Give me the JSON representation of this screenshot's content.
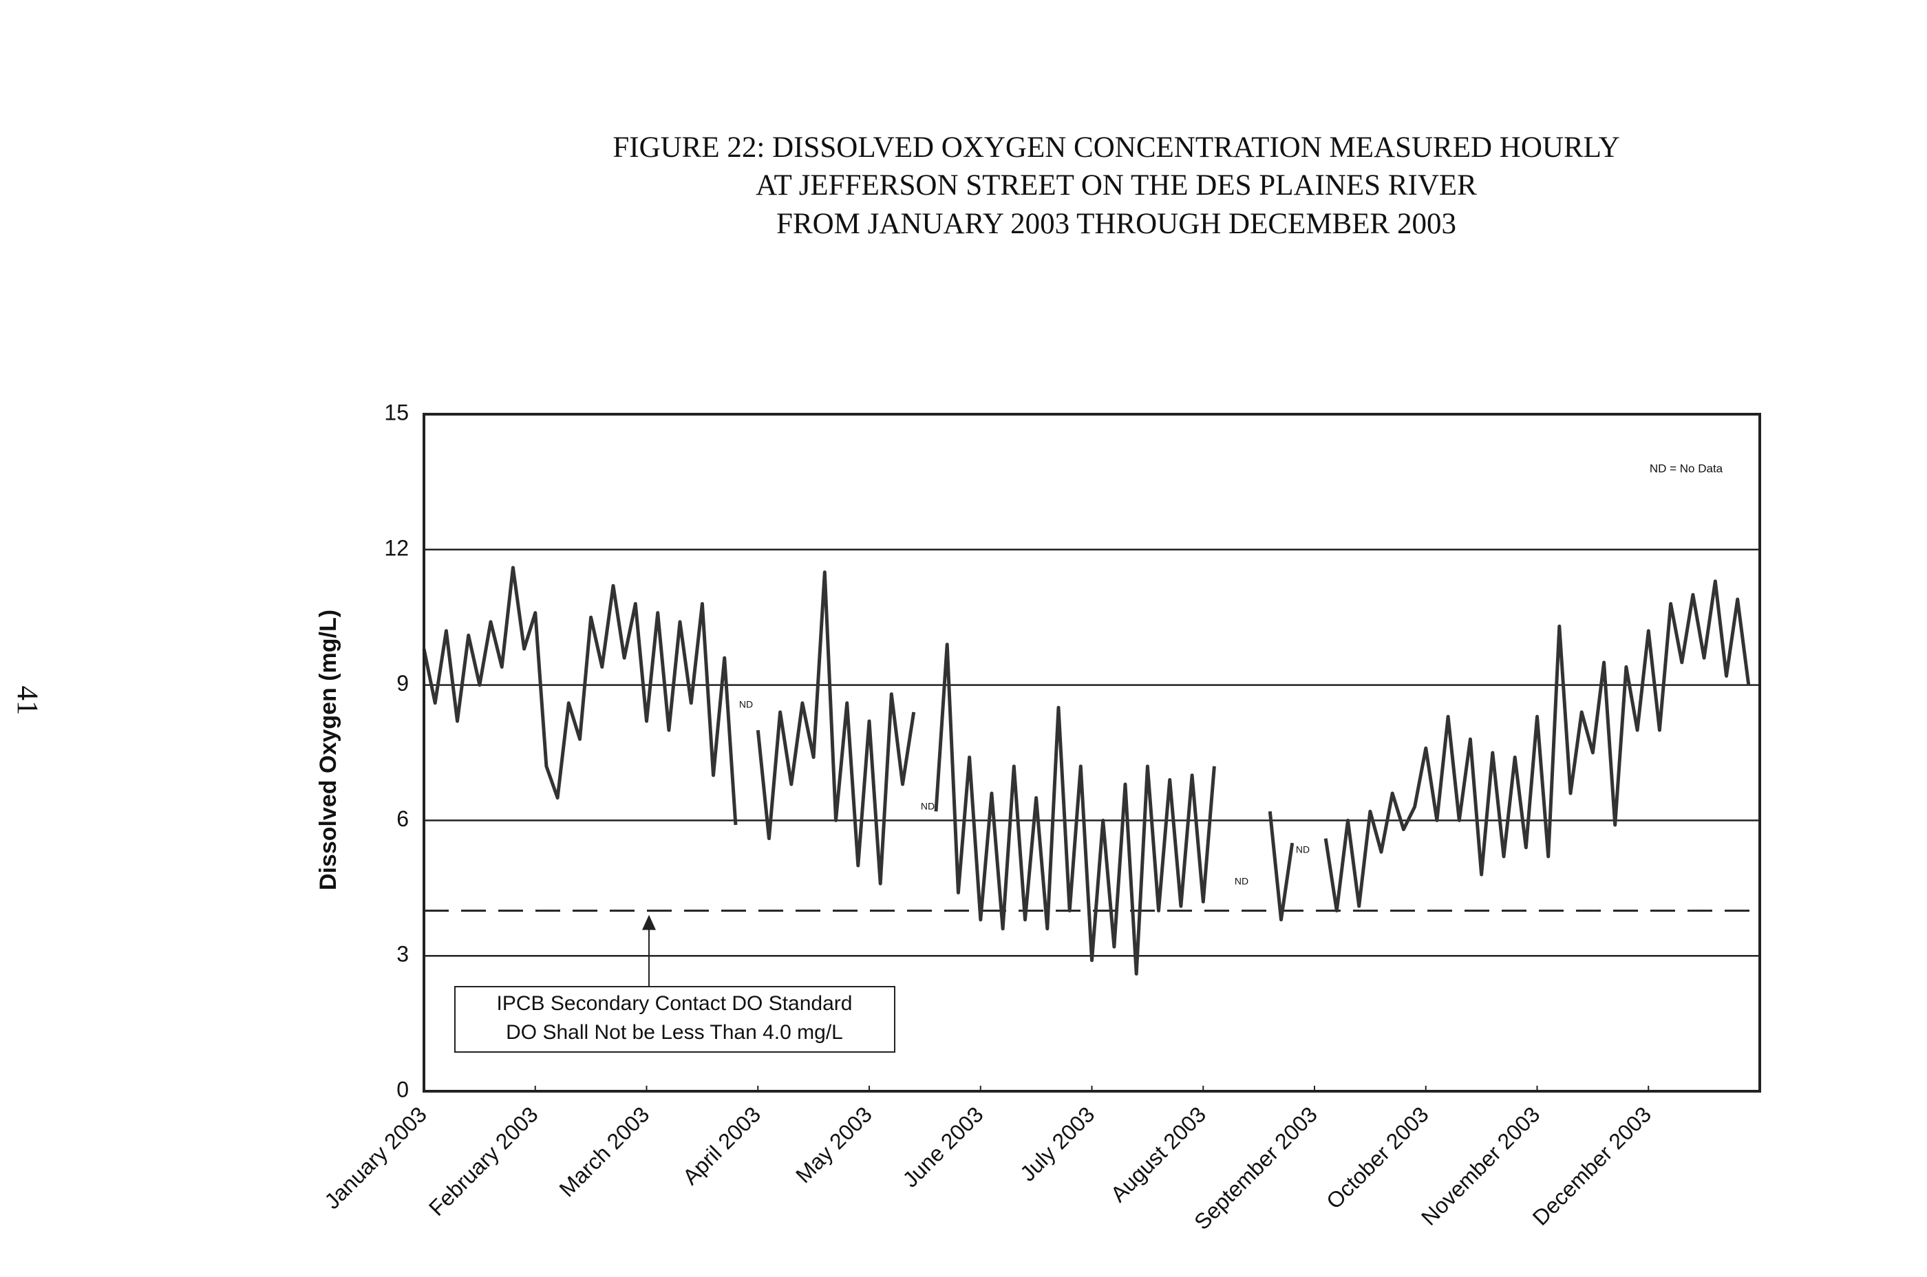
{
  "chart_data": {
    "type": "line",
    "page_number": "41",
    "title": [
      "FIGURE 22:  DISSOLVED OXYGEN CONCENTRATION MEASURED HOURLY",
      "AT JEFFERSON STREET ON THE DES PLAINES RIVER",
      "FROM JANUARY 2003 THROUGH DECEMBER 2003"
    ],
    "y_label": "Dissolved Oxygen (mg/L)",
    "legend_note": "ND = No Data",
    "gap_label": "ND",
    "standard": {
      "value": 4,
      "lines": [
        "IPCB Secondary Contact DO Standard",
        "DO Shall Not be Less Than 4.0 mg/L"
      ]
    },
    "xlim": [
      0,
      12
    ],
    "xticks": [
      {
        "value": 0,
        "label": "January 2003"
      },
      {
        "value": 1,
        "label": "February 2003"
      },
      {
        "value": 2,
        "label": "March 2003"
      },
      {
        "value": 3,
        "label": "April 2003"
      },
      {
        "value": 4,
        "label": "May 2003"
      },
      {
        "value": 5,
        "label": "June 2003"
      },
      {
        "value": 6,
        "label": "July 2003"
      },
      {
        "value": 7,
        "label": "August 2003"
      },
      {
        "value": 8,
        "label": "September 2003"
      },
      {
        "value": 9,
        "label": "October 2003"
      },
      {
        "value": 10,
        "label": "November 2003"
      },
      {
        "value": 11,
        "label": "December 2003"
      }
    ],
    "ylim": [
      0,
      15
    ],
    "yticks": [
      0,
      3,
      6,
      9,
      12,
      15
    ],
    "grid": true,
    "x": [
      0,
      0.1,
      0.2,
      0.3,
      0.4,
      0.5,
      0.6,
      0.7,
      0.8,
      0.9,
      1,
      1.1,
      1.2,
      1.3,
      1.4,
      1.5,
      1.6,
      1.7,
      1.8,
      1.9,
      2,
      2.1,
      2.2,
      2.3,
      2.4,
      2.5,
      2.6,
      2.7,
      2.8,
      2.9,
      3,
      3.1,
      3.2,
      3.3,
      3.4,
      3.5,
      3.6,
      3.7,
      3.8,
      3.9,
      4,
      4.1,
      4.2,
      4.3,
      4.4,
      4.5,
      4.6,
      4.7,
      4.8,
      4.9,
      5,
      5.1,
      5.2,
      5.3,
      5.4,
      5.5,
      5.6,
      5.7,
      5.8,
      5.9,
      6,
      6.1,
      6.2,
      6.3,
      6.4,
      6.5,
      6.6,
      6.7,
      6.8,
      6.9,
      7,
      7.1,
      7.2,
      7.3,
      7.4,
      7.5,
      7.6,
      7.7,
      7.8,
      7.9,
      8,
      8.1,
      8.2,
      8.3,
      8.4,
      8.5,
      8.6,
      8.7,
      8.8,
      8.9,
      9,
      9.1,
      9.2,
      9.3,
      9.4,
      9.5,
      9.6,
      9.7,
      9.8,
      9.9,
      10,
      10.1,
      10.2,
      10.3,
      10.4,
      10.5,
      10.6,
      10.7,
      10.8,
      10.9,
      11,
      11.1,
      11.2,
      11.3,
      11.4,
      11.5,
      11.6,
      11.7,
      11.8,
      11.9
    ],
    "series": [
      {
        "color": "#333333",
        "values": [
          9.8,
          8.6,
          10.2,
          8.2,
          10.1,
          9.0,
          10.4,
          9.4,
          11.6,
          9.8,
          10.6,
          7.2,
          6.5,
          8.6,
          7.8,
          10.5,
          9.4,
          11.2,
          9.6,
          10.8,
          8.2,
          10.6,
          8.0,
          10.4,
          8.6,
          10.8,
          7.0,
          9.6,
          5.9,
          null,
          8.0,
          5.6,
          8.4,
          6.8,
          8.6,
          7.4,
          11.5,
          6.0,
          8.6,
          5.0,
          8.2,
          4.6,
          8.8,
          6.8,
          8.4,
          null,
          6.2,
          9.9,
          4.4,
          7.4,
          3.8,
          6.6,
          3.6,
          7.2,
          3.8,
          6.5,
          3.6,
          8.5,
          4.0,
          7.2,
          2.9,
          6.0,
          3.2,
          6.8,
          2.6,
          7.2,
          4.0,
          6.9,
          4.1,
          7.0,
          4.2,
          7.2,
          null,
          null,
          null,
          null,
          6.2,
          3.8,
          5.5,
          null,
          null,
          5.6,
          4.0,
          6.0,
          4.1,
          6.2,
          5.3,
          6.6,
          5.8,
          6.3,
          7.6,
          6.0,
          8.3,
          6.0,
          7.8,
          4.8,
          7.5,
          5.2,
          7.4,
          5.4,
          8.3,
          5.2,
          10.3,
          6.6,
          8.4,
          7.5,
          9.5,
          5.9,
          9.4,
          8.0,
          10.2,
          8.0,
          10.8,
          9.5,
          11.0,
          9.6,
          11.3,
          9.2,
          10.9,
          9.0
        ]
      }
    ]
  }
}
